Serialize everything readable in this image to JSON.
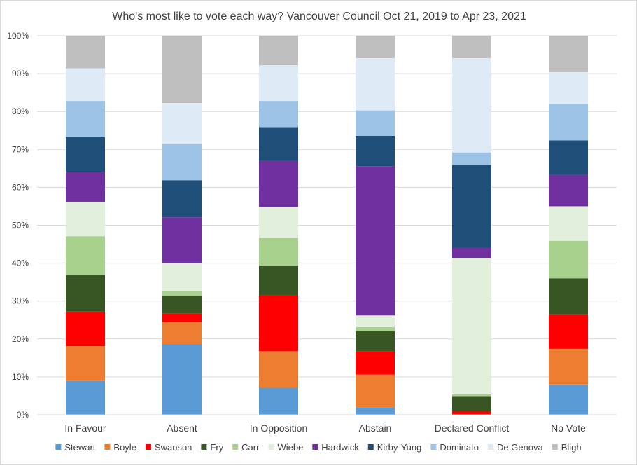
{
  "chart_data": {
    "type": "bar",
    "stacked": true,
    "normalized": true,
    "title": "Who's most like to vote each way? Vancouver Council Oct 21, 2019 to Apr 23, 2021",
    "xlabel": "",
    "ylabel": "",
    "ylim": [
      0,
      100
    ],
    "y_ticks": [
      "0%",
      "10%",
      "20%",
      "30%",
      "40%",
      "50%",
      "60%",
      "70%",
      "80%",
      "90%",
      "100%"
    ],
    "grid": true,
    "legend_position": "bottom",
    "categories": [
      "In Favour",
      "Absent",
      "In Opposition",
      "Abstain",
      "Declared Conflict",
      "No Vote"
    ],
    "series": [
      {
        "name": "Stewart",
        "color": "#5b9bd5",
        "values": [
          9.0,
          18.7,
          7.2,
          2.0,
          0.0,
          8.0
        ]
      },
      {
        "name": "Boyle",
        "color": "#ed7d31",
        "values": [
          9.1,
          5.8,
          9.6,
          8.6,
          0.0,
          9.4
        ]
      },
      {
        "name": "Swanson",
        "color": "#ff0000",
        "values": [
          9.1,
          2.2,
          14.8,
          6.2,
          1.0,
          9.1
        ]
      },
      {
        "name": "Fry",
        "color": "#375623",
        "values": [
          9.7,
          4.7,
          7.8,
          5.2,
          3.9,
          9.5
        ]
      },
      {
        "name": "Carr",
        "color": "#a9d18e",
        "values": [
          10.2,
          1.4,
          7.3,
          1.1,
          0.5,
          9.9
        ]
      },
      {
        "name": "Wiebe",
        "color": "#e2efda",
        "values": [
          9.1,
          7.4,
          8.1,
          3.1,
          36.0,
          9.1
        ]
      },
      {
        "name": "Hardwick",
        "color": "#7030a0",
        "values": [
          7.9,
          12.0,
          12.3,
          39.4,
          2.6,
          8.4
        ]
      },
      {
        "name": "Kirby-Yung",
        "color": "#1f4e79",
        "values": [
          9.1,
          9.8,
          8.8,
          8.0,
          21.9,
          9.0
        ]
      },
      {
        "name": "Dominato",
        "color": "#9dc3e6",
        "values": [
          9.6,
          9.5,
          6.9,
          6.7,
          3.3,
          9.6
        ]
      },
      {
        "name": "De Genova",
        "color": "#deebf7",
        "values": [
          8.6,
          10.9,
          9.4,
          13.8,
          24.9,
          8.4
        ]
      },
      {
        "name": "Bligh",
        "color": "#bfbfbf",
        "values": [
          8.6,
          17.8,
          7.8,
          5.9,
          5.9,
          9.6
        ]
      }
    ]
  }
}
